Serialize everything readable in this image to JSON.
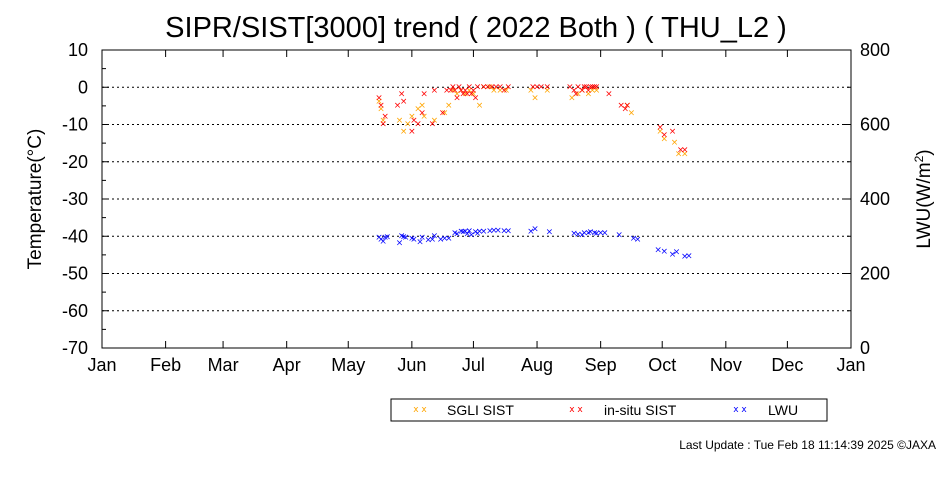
{
  "chart_data": {
    "type": "scatter",
    "title": "SIPR/SIST[3000] trend ( 2022 Both ) ( THU_L2 )",
    "ylabel": "Temperature(°C)",
    "y2label_main": "LWU(W/m",
    "y2label_sup": "2",
    "y2label_end": ")",
    "ylim": [
      -70,
      10
    ],
    "y2lim": [
      0,
      800
    ],
    "xlim": [
      1,
      366
    ],
    "grid": "horizontal dotted",
    "legend_position": "bottom",
    "y_ticks": [
      "10",
      "0",
      "-10",
      "-20",
      "-30",
      "-40",
      "-50",
      "-60",
      "-70"
    ],
    "y2_ticks": [
      "800",
      "600",
      "400",
      "200",
      "0"
    ],
    "months": [
      "Jan",
      "Feb",
      "Mar",
      "Apr",
      "May",
      "Jun",
      "Jul",
      "Aug",
      "Sep",
      "Oct",
      "Nov",
      "Dec",
      "Jan"
    ],
    "series": [
      {
        "name": "SGLI SIST",
        "color": "#ffa500",
        "axis": "left",
        "marker": "x",
        "points": [
          [
            136,
            -4
          ],
          [
            137,
            -6
          ],
          [
            138,
            -9
          ],
          [
            146,
            -9
          ],
          [
            148,
            -12
          ],
          [
            150,
            -10
          ],
          [
            152,
            -8
          ],
          [
            155,
            -6
          ],
          [
            157,
            -5
          ],
          [
            158,
            -8
          ],
          [
            163,
            -9
          ],
          [
            168,
            -7
          ],
          [
            170,
            -5
          ],
          [
            172,
            -1
          ],
          [
            174,
            -2
          ],
          [
            176,
            -1
          ],
          [
            178,
            -2
          ],
          [
            180,
            -1
          ],
          [
            182,
            -2
          ],
          [
            185,
            -5
          ],
          [
            187,
            0
          ],
          [
            190,
            0
          ],
          [
            192,
            -1
          ],
          [
            195,
            -1
          ],
          [
            198,
            -1
          ],
          [
            210,
            -1
          ],
          [
            212,
            -3
          ],
          [
            218,
            -1
          ],
          [
            230,
            -3
          ],
          [
            233,
            -2
          ],
          [
            235,
            -1
          ],
          [
            238,
            -2
          ],
          [
            240,
            -1
          ],
          [
            242,
            -1
          ],
          [
            257,
            -5
          ],
          [
            259,
            -7
          ],
          [
            273,
            -12
          ],
          [
            275,
            -14
          ],
          [
            280,
            -15
          ],
          [
            282,
            -18
          ],
          [
            285,
            -18
          ]
        ]
      },
      {
        "name": "in-situ SIST",
        "color": "#ff0000",
        "axis": "left",
        "marker": "x",
        "points": [
          [
            136,
            -3
          ],
          [
            137,
            -5
          ],
          [
            138,
            -10
          ],
          [
            139,
            -8
          ],
          [
            145,
            -5
          ],
          [
            147,
            -2
          ],
          [
            148,
            -4
          ],
          [
            152,
            -12
          ],
          [
            153,
            -9
          ],
          [
            155,
            -10
          ],
          [
            157,
            -7
          ],
          [
            158,
            -2
          ],
          [
            162,
            -10
          ],
          [
            163,
            -1
          ],
          [
            167,
            -7
          ],
          [
            169,
            -1
          ],
          [
            171,
            -1
          ],
          [
            172,
            0
          ],
          [
            173,
            -1
          ],
          [
            174,
            -3
          ],
          [
            175,
            0
          ],
          [
            176,
            -1
          ],
          [
            177,
            -2
          ],
          [
            178,
            -1
          ],
          [
            179,
            -2
          ],
          [
            180,
            0
          ],
          [
            181,
            -2
          ],
          [
            182,
            -1
          ],
          [
            183,
            -3
          ],
          [
            184,
            0
          ],
          [
            187,
            0
          ],
          [
            189,
            0
          ],
          [
            191,
            0
          ],
          [
            193,
            0
          ],
          [
            195,
            0
          ],
          [
            197,
            -1
          ],
          [
            199,
            0
          ],
          [
            211,
            0
          ],
          [
            213,
            0
          ],
          [
            215,
            0
          ],
          [
            218,
            0
          ],
          [
            229,
            0
          ],
          [
            231,
            -1
          ],
          [
            232,
            -2
          ],
          [
            233,
            0
          ],
          [
            235,
            -1
          ],
          [
            236,
            0
          ],
          [
            237,
            0
          ],
          [
            238,
            -1
          ],
          [
            239,
            0
          ],
          [
            240,
            0
          ],
          [
            241,
            0
          ],
          [
            242,
            0
          ],
          [
            248,
            -2
          ],
          [
            254,
            -5
          ],
          [
            256,
            -6
          ],
          [
            257,
            -5
          ],
          [
            273,
            -11
          ],
          [
            275,
            -13
          ],
          [
            279,
            -12
          ],
          [
            283,
            -17
          ],
          [
            285,
            -17
          ]
        ]
      },
      {
        "name": "LWU",
        "color": "#0000ff",
        "axis": "right",
        "marker": "x",
        "points": [
          [
            136,
            295
          ],
          [
            137,
            290
          ],
          [
            138,
            285
          ],
          [
            139,
            295
          ],
          [
            140,
            297
          ],
          [
            146,
            280
          ],
          [
            147,
            300
          ],
          [
            148,
            296
          ],
          [
            149,
            295
          ],
          [
            152,
            292
          ],
          [
            153,
            290
          ],
          [
            156,
            283
          ],
          [
            157,
            295
          ],
          [
            160,
            288
          ],
          [
            162,
            290
          ],
          [
            163,
            300
          ],
          [
            166,
            290
          ],
          [
            168,
            292
          ],
          [
            170,
            292
          ],
          [
            173,
            308
          ],
          [
            174,
            305
          ],
          [
            176,
            312
          ],
          [
            177,
            310
          ],
          [
            178,
            312
          ],
          [
            179,
            305
          ],
          [
            180,
            313
          ],
          [
            181,
            302
          ],
          [
            183,
            310
          ],
          [
            184,
            306
          ],
          [
            185,
            312
          ],
          [
            187,
            311
          ],
          [
            190,
            313
          ],
          [
            192,
            314
          ],
          [
            194,
            314
          ],
          [
            197,
            313
          ],
          [
            199,
            313
          ],
          [
            210,
            312
          ],
          [
            212,
            318
          ],
          [
            219,
            310
          ],
          [
            231,
            306
          ],
          [
            233,
            304
          ],
          [
            235,
            302
          ],
          [
            236,
            307
          ],
          [
            238,
            308
          ],
          [
            239,
            310
          ],
          [
            241,
            308
          ],
          [
            242,
            306
          ],
          [
            244,
            308
          ],
          [
            246,
            308
          ],
          [
            253,
            302
          ],
          [
            260,
            292
          ],
          [
            262,
            290
          ],
          [
            272,
            262
          ],
          [
            275,
            258
          ],
          [
            279,
            250
          ],
          [
            281,
            256
          ],
          [
            285,
            244
          ],
          [
            287,
            246
          ]
        ]
      }
    ]
  },
  "legend": {
    "sgli_label": "SGLI SIST",
    "insitu_label": "in-situ SIST",
    "lwu_label": "LWU",
    "marker_glyph": "x x"
  },
  "footer": "Last Update : Tue Feb 18 11:14:39 2025  ©JAXA"
}
